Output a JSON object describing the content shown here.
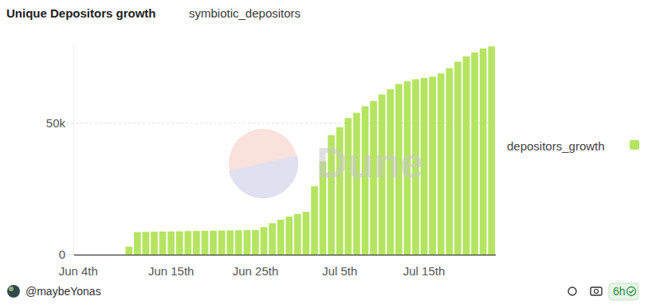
{
  "chart_data": {
    "type": "bar",
    "title": "Unique Depositors growth",
    "subtitle": "symbiotic_depositors",
    "categories": [
      "Jun 4th",
      null,
      null,
      null,
      null,
      null,
      null,
      null,
      null,
      null,
      null,
      "Jun 15th",
      null,
      null,
      null,
      null,
      null,
      null,
      null,
      null,
      null,
      "Jun 25th",
      null,
      null,
      null,
      null,
      null,
      null,
      null,
      null,
      null,
      "Jul 5th",
      null,
      null,
      null,
      null,
      null,
      null,
      null,
      null,
      null,
      "Jul 15th",
      null,
      null,
      null,
      null,
      null,
      null,
      null,
      null
    ],
    "series": [
      {
        "name": "depositors_growth",
        "color": "#b5e461",
        "values": [
          0,
          0,
          0,
          0,
          0,
          0,
          3000,
          8600,
          8700,
          8750,
          8800,
          8850,
          8900,
          9000,
          9050,
          9100,
          9150,
          9200,
          9250,
          9300,
          9350,
          9400,
          10500,
          12000,
          13300,
          14500,
          15500,
          16300,
          26000,
          35500,
          45500,
          48500,
          52000,
          54000,
          56500,
          58500,
          61000,
          63000,
          65000,
          66000,
          66800,
          67300,
          67800,
          69000,
          71000,
          73500,
          75500,
          77000,
          78500,
          79300
        ]
      }
    ],
    "ylim": [
      0,
      80000
    ],
    "yticks": [
      0,
      {
        "value": 50000,
        "label": "50k"
      }
    ],
    "grid": true,
    "legend": "right"
  },
  "watermark": "Dune",
  "footer": {
    "author": "@maybeYonas",
    "age": "6h"
  }
}
